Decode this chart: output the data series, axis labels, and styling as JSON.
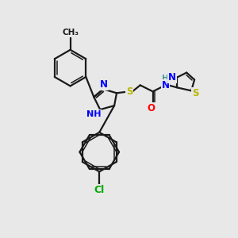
{
  "bg_color": "#e8e8e8",
  "bond_color": "#1a1a1a",
  "bond_width": 1.6,
  "atom_colors": {
    "N": "#0000ff",
    "NH": "#0000ff",
    "H": "#4a9a9a",
    "S": "#b8b800",
    "O": "#ff0000",
    "Cl": "#00aa00",
    "C": "#1a1a1a"
  },
  "font_size_atom": 8.5,
  "font_size_sub": 6.0
}
